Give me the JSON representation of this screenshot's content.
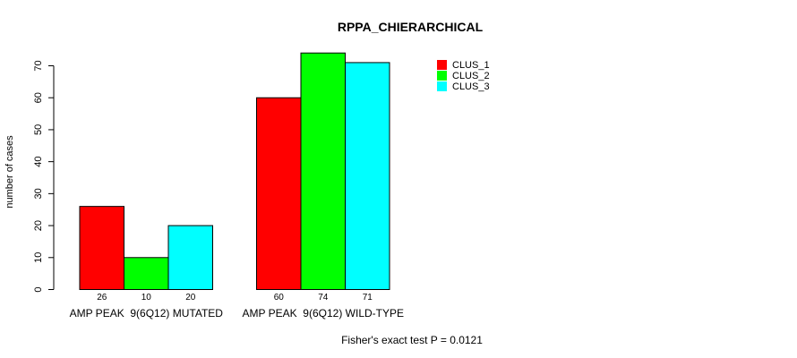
{
  "chart_data": {
    "type": "bar",
    "title": "RPPA_CHIERARCHICAL",
    "xlabel": "",
    "ylabel": "number of cases",
    "ylim": [
      0,
      70
    ],
    "yticks": [
      0,
      10,
      20,
      30,
      40,
      50,
      60,
      70
    ],
    "categories": [
      "AMP PEAK  9(6Q12) MUTATED",
      "AMP PEAK  9(6Q12) WILD-TYPE"
    ],
    "series": [
      {
        "name": "CLUS_1",
        "color": "#ff0000",
        "values": [
          26,
          60
        ]
      },
      {
        "name": "CLUS_2",
        "color": "#00ff00",
        "values": [
          10,
          74
        ]
      },
      {
        "name": "CLUS_3",
        "color": "#00ffff",
        "values": [
          20,
          71
        ]
      }
    ],
    "legend_position": "top-right",
    "footnote": "Fisher's exact test P = 0.0121"
  }
}
